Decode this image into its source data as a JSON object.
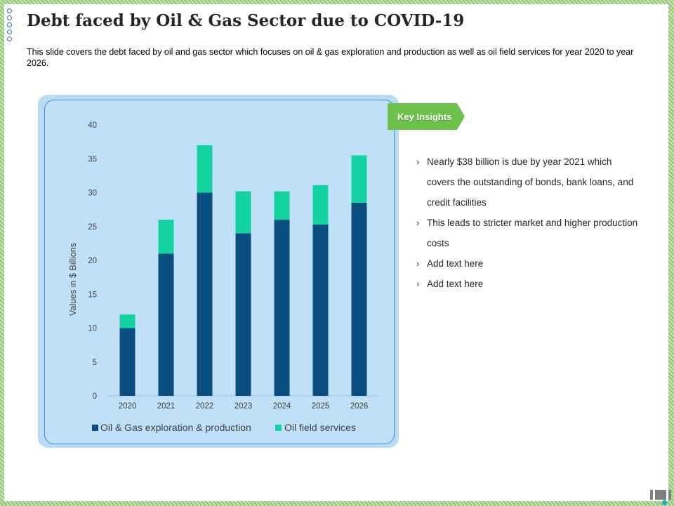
{
  "title": "Debt faced by Oil & Gas Sector due to COVID-19",
  "description": "This slide covers the debt faced by oil and gas sector which focuses on oil & gas exploration and production as well as oil field services for year 2020 to year 2026.",
  "insights": {
    "tag": "Key Insights",
    "bullets": [
      "Nearly $38 billion is due by year 2021 which covers the outstanding of bonds, bank loans, and credit facilities",
      "This leads to stricter market and higher production costs",
      "Add text here",
      "Add text here"
    ]
  },
  "colors": {
    "exploration": "#0b4f82",
    "oilfield": "#13d3a0",
    "accent_green": "#6cc24a"
  },
  "chart_data": {
    "type": "bar",
    "stacked": true,
    "categories": [
      "2020",
      "2021",
      "2022",
      "2023",
      "2024",
      "2025",
      "2026"
    ],
    "series": [
      {
        "name": "Oil & Gas exploration & production",
        "values": [
          10,
          21,
          30,
          24,
          26,
          25.3,
          28.5
        ]
      },
      {
        "name": "Oil field services",
        "values": [
          2,
          5,
          7,
          6.2,
          4.2,
          5.8,
          7
        ]
      }
    ],
    "ylabel": "Values in $ Billions",
    "xlabel": "",
    "ylim": [
      0,
      40
    ],
    "yticks": [
      "0",
      "5",
      "10",
      "15",
      "20",
      "25",
      "30",
      "35",
      "40"
    ],
    "legend": "bottom"
  }
}
